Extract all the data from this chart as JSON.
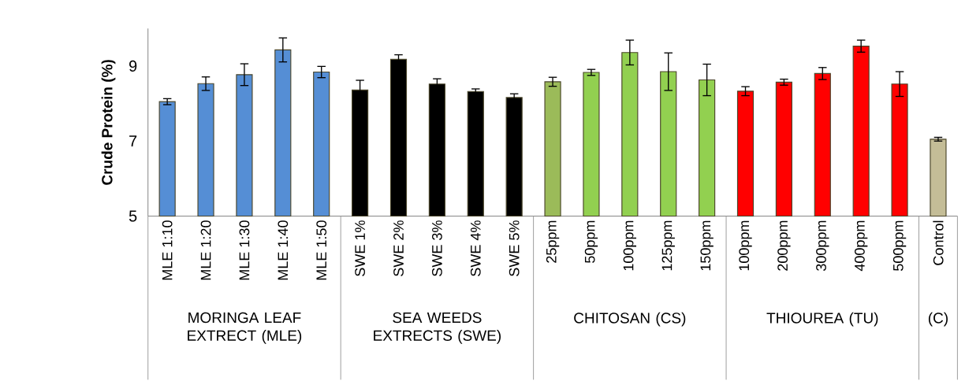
{
  "chart_data": {
    "type": "bar",
    "ylabel": "Crude Protein (%)",
    "categories": [
      "MLE 1:10",
      "MLE 1:20",
      "MLE 1:30",
      "MLE 1:40",
      "MLE 1:50",
      "SWE 1%",
      "SWE 2%",
      "SWE 3%",
      "SWE 4%",
      "SWE 5%",
      "25ppm",
      "50ppm",
      "100ppm",
      "125ppm",
      "150ppm",
      "100ppm",
      "200ppm",
      "300ppm",
      "400ppm",
      "500ppm",
      "Control"
    ],
    "values": [
      8.05,
      8.53,
      8.77,
      9.43,
      8.84,
      8.36,
      9.18,
      8.52,
      8.32,
      8.16,
      8.58,
      8.83,
      9.36,
      8.85,
      8.63,
      8.33,
      8.57,
      8.8,
      9.53,
      8.52,
      7.05
    ],
    "errors": [
      0.08,
      0.18,
      0.29,
      0.32,
      0.15,
      0.26,
      0.12,
      0.14,
      0.07,
      0.1,
      0.12,
      0.08,
      0.33,
      0.5,
      0.42,
      0.12,
      0.08,
      0.16,
      0.16,
      0.33,
      0.05
    ],
    "colors": [
      "#558ed5",
      "#558ed5",
      "#558ed5",
      "#558ed5",
      "#558ed5",
      "#000000",
      "#000000",
      "#000000",
      "#000000",
      "#000000",
      "#9bbb59",
      "#92d050",
      "#92d050",
      "#92d050",
      "#92d050",
      "#ff0000",
      "#ff0000",
      "#ff0000",
      "#ff0000",
      "#ff0000",
      "#c4bd97"
    ],
    "ylim": [
      5,
      10
    ],
    "yticks": [
      5,
      7,
      9
    ],
    "annotations": [
      "MORINGA LEAF EXTRECT (MLE)",
      "SEA WEEDS EXTRECTS (SWE)",
      "CHITOSAN (CS)",
      "THIOUREA (TU)",
      "(C)"
    ]
  }
}
